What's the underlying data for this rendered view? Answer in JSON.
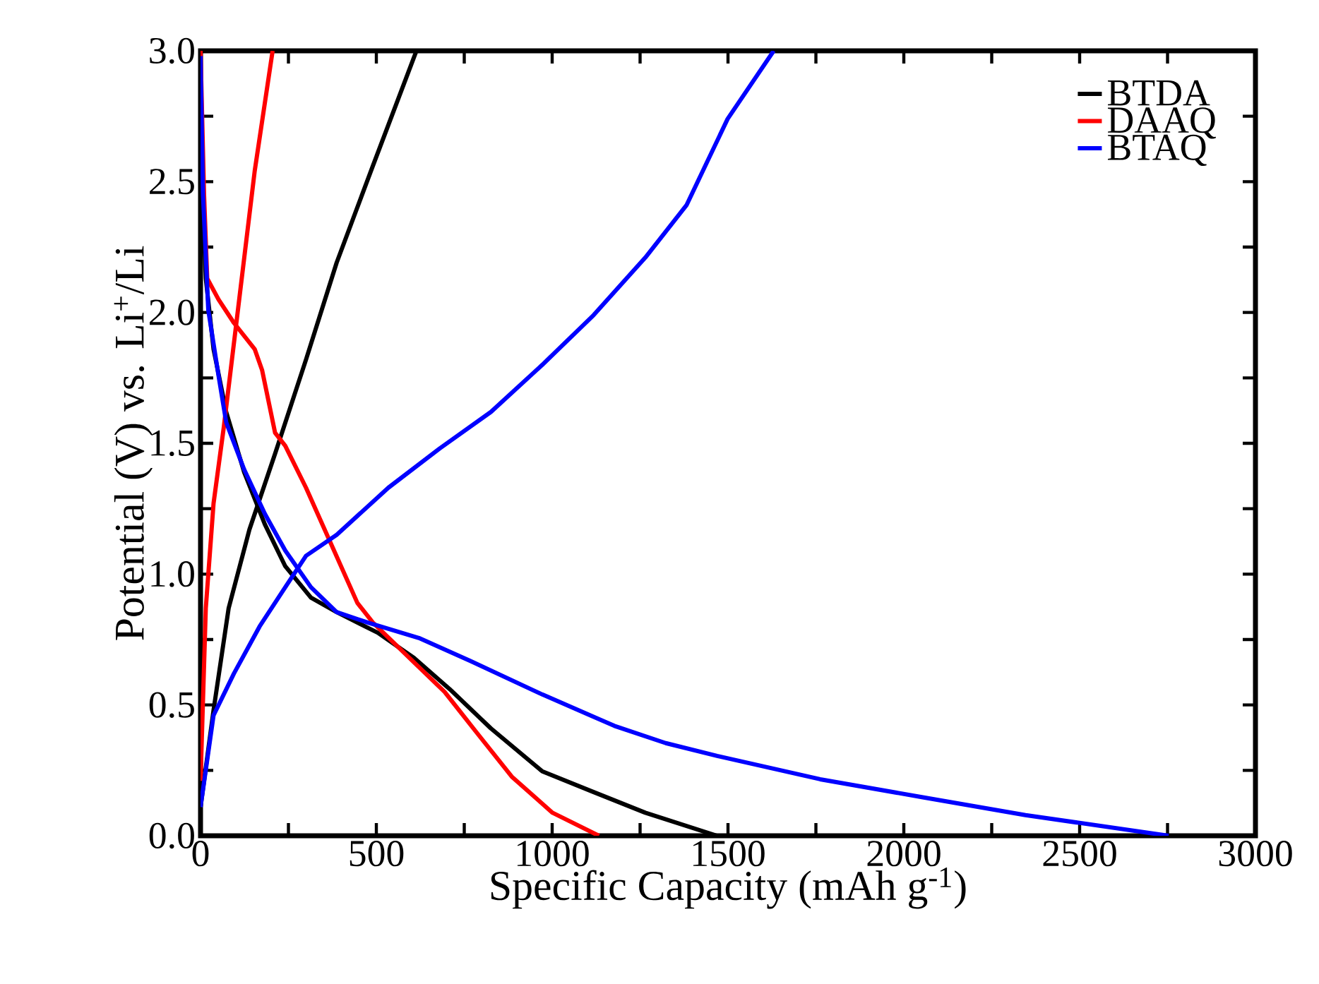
{
  "chart_data": {
    "type": "line",
    "xlabel": "Specific Capacity (mAh g$^{-1}$)",
    "ylabel": "Potential (V) vs. Li$^{+}$/Li",
    "xlim": [
      0,
      3000
    ],
    "ylim": [
      0,
      3.0
    ],
    "xticks": [
      0,
      {
        "value": 250,
        "label": null
      },
      500,
      {
        "value": 750,
        "label": null
      },
      1000,
      {
        "value": 1250,
        "label": null
      },
      1500,
      {
        "value": 1750,
        "label": null
      },
      2000,
      {
        "value": 2250,
        "label": null
      },
      2500,
      {
        "value": 2750,
        "label": null
      },
      3000
    ],
    "yticks": [
      {
        "value": 0,
        "label": "0.0"
      },
      {
        "value": 0.25,
        "label": null
      },
      0.5,
      {
        "value": 0.75,
        "label": null
      },
      {
        "value": 1,
        "label": "1.0"
      },
      {
        "value": 1.25,
        "label": null
      },
      1.5,
      {
        "value": 1.75,
        "label": null
      },
      {
        "value": 2,
        "label": "2.0"
      },
      {
        "value": 2.25,
        "label": null
      },
      2.5,
      {
        "value": 2.75,
        "label": null
      },
      {
        "value": 3,
        "label": "3.0"
      }
    ],
    "legend": "top right",
    "series": [
      {
        "name": "BTDA",
        "color": "#000000",
        "x": [
          5,
          10,
          15,
          37,
          73,
          124,
          183,
          241,
          314,
          387,
          504,
          607,
          709,
          826,
          972,
          1118,
          1265,
          1469
        ],
        "values": [
          2.6,
          2.3,
          2.13,
          1.86,
          1.62,
          1.39,
          1.19,
          1.03,
          0.91,
          0.855,
          0.776,
          0.68,
          0.56,
          0.41,
          0.246,
          0.167,
          0.088,
          0
        ]
      },
      {
        "color": "#000000",
        "x": [
          0,
          37,
          80,
          139,
          212,
          300,
          387,
          490,
          614
        ],
        "values": [
          0.11,
          0.48,
          0.87,
          1.17,
          1.46,
          1.82,
          2.19,
          2.56,
          3.0
        ]
      },
      {
        "name": "DAAQ",
        "color": "#ff0000",
        "x": [
          0,
          10,
          19,
          51,
          95,
          154,
          175,
          212,
          241,
          300,
          373,
          446,
          490,
          563,
          694,
          782,
          885,
          1001,
          1133
        ],
        "values": [
          3.0,
          2.45,
          2.13,
          2.05,
          1.96,
          1.86,
          1.78,
          1.54,
          1.49,
          1.33,
          1.11,
          0.89,
          0.815,
          0.72,
          0.55,
          0.4,
          0.226,
          0.088,
          0
        ]
      },
      {
        "color": "#ff0000",
        "x": [
          0,
          15,
          37,
          66,
          110,
          154,
          205
        ],
        "values": [
          0.21,
          0.87,
          1.27,
          1.56,
          2.05,
          2.54,
          3.0
        ]
      },
      {
        "name": "BTAQ",
        "color": "#0000ff",
        "x": [
          0,
          7,
          22,
          51,
          73,
          124,
          183,
          241,
          314,
          387,
          475,
          621,
          768,
          972,
          1177,
          1323,
          1469,
          1762,
          2054,
          2346,
          2753
        ],
        "values": [
          2.98,
          2.45,
          2.01,
          1.76,
          1.58,
          1.4,
          1.23,
          1.09,
          0.95,
          0.855,
          0.815,
          0.756,
          0.668,
          0.54,
          0.42,
          0.354,
          0.305,
          0.216,
          0.147,
          0.079,
          0
        ]
      },
      {
        "color": "#0000ff",
        "x": [
          0,
          37,
          95,
          168,
          241,
          300,
          387,
          534,
          680,
          826,
          972,
          1118,
          1265,
          1382,
          1499,
          1630
        ],
        "values": [
          0.11,
          0.46,
          0.62,
          0.8,
          0.95,
          1.07,
          1.15,
          1.33,
          1.48,
          1.62,
          1.8,
          1.99,
          2.21,
          2.41,
          2.74,
          3.0
        ]
      }
    ]
  }
}
